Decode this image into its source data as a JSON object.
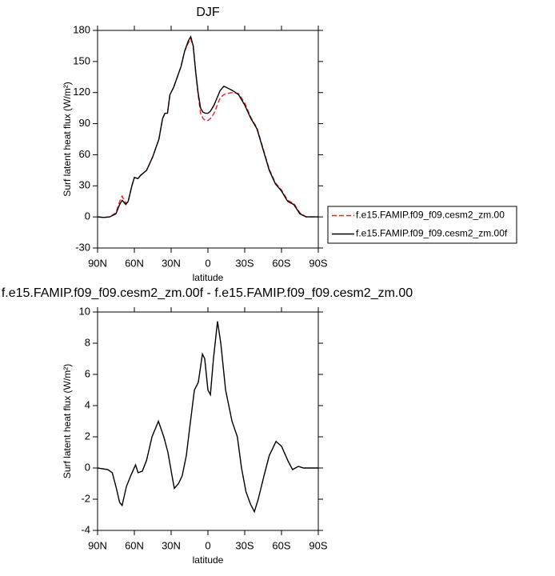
{
  "chart_data": [
    {
      "type": "line",
      "title": "DJF",
      "x_label": "latitude",
      "y_label": "Surf latent heat flux (W/m²)",
      "xlim": [
        90,
        -90
      ],
      "ylim": [
        -30,
        180
      ],
      "xticks": [
        {
          "value": 90,
          "label": "90N"
        },
        {
          "value": 60,
          "label": "60N"
        },
        {
          "value": 30,
          "label": "30N"
        },
        0,
        {
          "value": -30,
          "label": "30S"
        },
        {
          "value": -60,
          "label": "60S"
        },
        {
          "value": -90,
          "label": "90S"
        }
      ],
      "yticks": [
        -30,
        0,
        30,
        60,
        90,
        120,
        150,
        180
      ],
      "legend": "right",
      "x": [
        90,
        85,
        80,
        75,
        72,
        70,
        67,
        65,
        62,
        60,
        57,
        55,
        50,
        45,
        40,
        37,
        35,
        33,
        31,
        28,
        25,
        22,
        19,
        16,
        14,
        12,
        10,
        8,
        6,
        4,
        2,
        0,
        -2,
        -5,
        -10,
        -13,
        -15,
        -20,
        -25,
        -30,
        -35,
        -40,
        -45,
        -50,
        -55,
        -60,
        -65,
        -70,
        -75,
        -80,
        -85,
        -90
      ],
      "series": [
        {
          "name": "f.e15.FAMIP.f09_f09.cesm2_zm.00",
          "color": "#e8211f",
          "dash": "dashed",
          "values": [
            0,
            -0.5,
            0,
            4,
            15,
            20,
            13,
            15,
            30,
            38,
            37,
            40,
            45,
            58,
            75,
            95,
            100,
            100,
            118,
            125,
            135,
            145,
            160,
            168,
            172,
            165,
            140,
            118,
            100,
            95,
            93,
            93,
            95,
            100,
            115,
            118,
            119,
            120,
            119,
            110,
            96,
            86,
            66,
            46,
            33,
            26,
            16,
            13,
            4,
            0,
            0,
            0
          ]
        },
        {
          "name": "f.e15.FAMIP.f09_f09.cesm2_zm.00f",
          "color": "#000000",
          "dash": "solid",
          "values": [
            0,
            -0.5,
            0,
            3,
            12,
            16,
            12,
            15,
            30,
            38,
            37,
            40,
            45,
            58,
            75,
            95,
            100,
            100,
            118,
            125,
            135,
            145,
            160,
            170,
            174,
            165,
            140,
            120,
            105,
            101,
            100,
            100,
            102,
            108,
            122,
            126,
            125,
            122,
            118,
            108,
            95,
            85,
            65,
            45,
            32,
            25,
            15,
            12,
            3,
            0,
            0,
            0
          ]
        }
      ]
    },
    {
      "type": "line",
      "title": "f.e15.FAMIP.f09_f09.cesm2_zm.00f - f.e15.FAMIP.f09_f09.cesm2_zm.00",
      "x_label": "latitude",
      "y_label": "Surf latent heat flux (W/m²)",
      "xlim": [
        90,
        -90
      ],
      "ylim": [
        -4,
        10
      ],
      "xticks": [
        {
          "value": 90,
          "label": "90N"
        },
        {
          "value": 60,
          "label": "60N"
        },
        {
          "value": 30,
          "label": "30N"
        },
        0,
        {
          "value": -30,
          "label": "30S"
        },
        {
          "value": -60,
          "label": "60S"
        },
        {
          "value": -90,
          "label": "90S"
        }
      ],
      "yticks": [
        -4,
        -2,
        0,
        2,
        4,
        6,
        8,
        10
      ],
      "x": [
        90,
        81.5,
        78,
        75,
        72,
        70,
        66.5,
        63,
        59,
        57,
        53.5,
        50,
        45.6,
        40.4,
        36,
        32.6,
        29.3,
        27.4,
        24,
        21,
        17.6,
        15,
        11,
        7.8,
        4.5,
        2.6,
        0,
        -2,
        -4.5,
        -7.8,
        -10.5,
        -14.4,
        -19.6,
        -24,
        -27.4,
        -31,
        -34.6,
        -37.9,
        -41,
        -45.7,
        -50,
        -55.5,
        -60,
        -65,
        -69,
        -73.7,
        -78,
        -90
      ],
      "series": [
        {
          "color": "#000000",
          "dash": "solid",
          "values": [
            0,
            -0.1,
            -0.3,
            -1.2,
            -2.2,
            -2.4,
            -1.2,
            -0.5,
            0.2,
            -0.3,
            -0.2,
            0.5,
            2,
            3,
            2,
            1,
            -0.5,
            -1.3,
            -1,
            -0.5,
            0.8,
            2.5,
            5,
            5.5,
            7.3,
            7,
            5,
            4.7,
            7,
            9.4,
            8,
            5,
            3,
            2,
            0,
            -1.5,
            -2.3,
            -2.8,
            -2,
            -0.5,
            0.8,
            1.7,
            1.4,
            0.5,
            -0.1,
            0.1,
            0,
            0
          ]
        }
      ]
    }
  ]
}
